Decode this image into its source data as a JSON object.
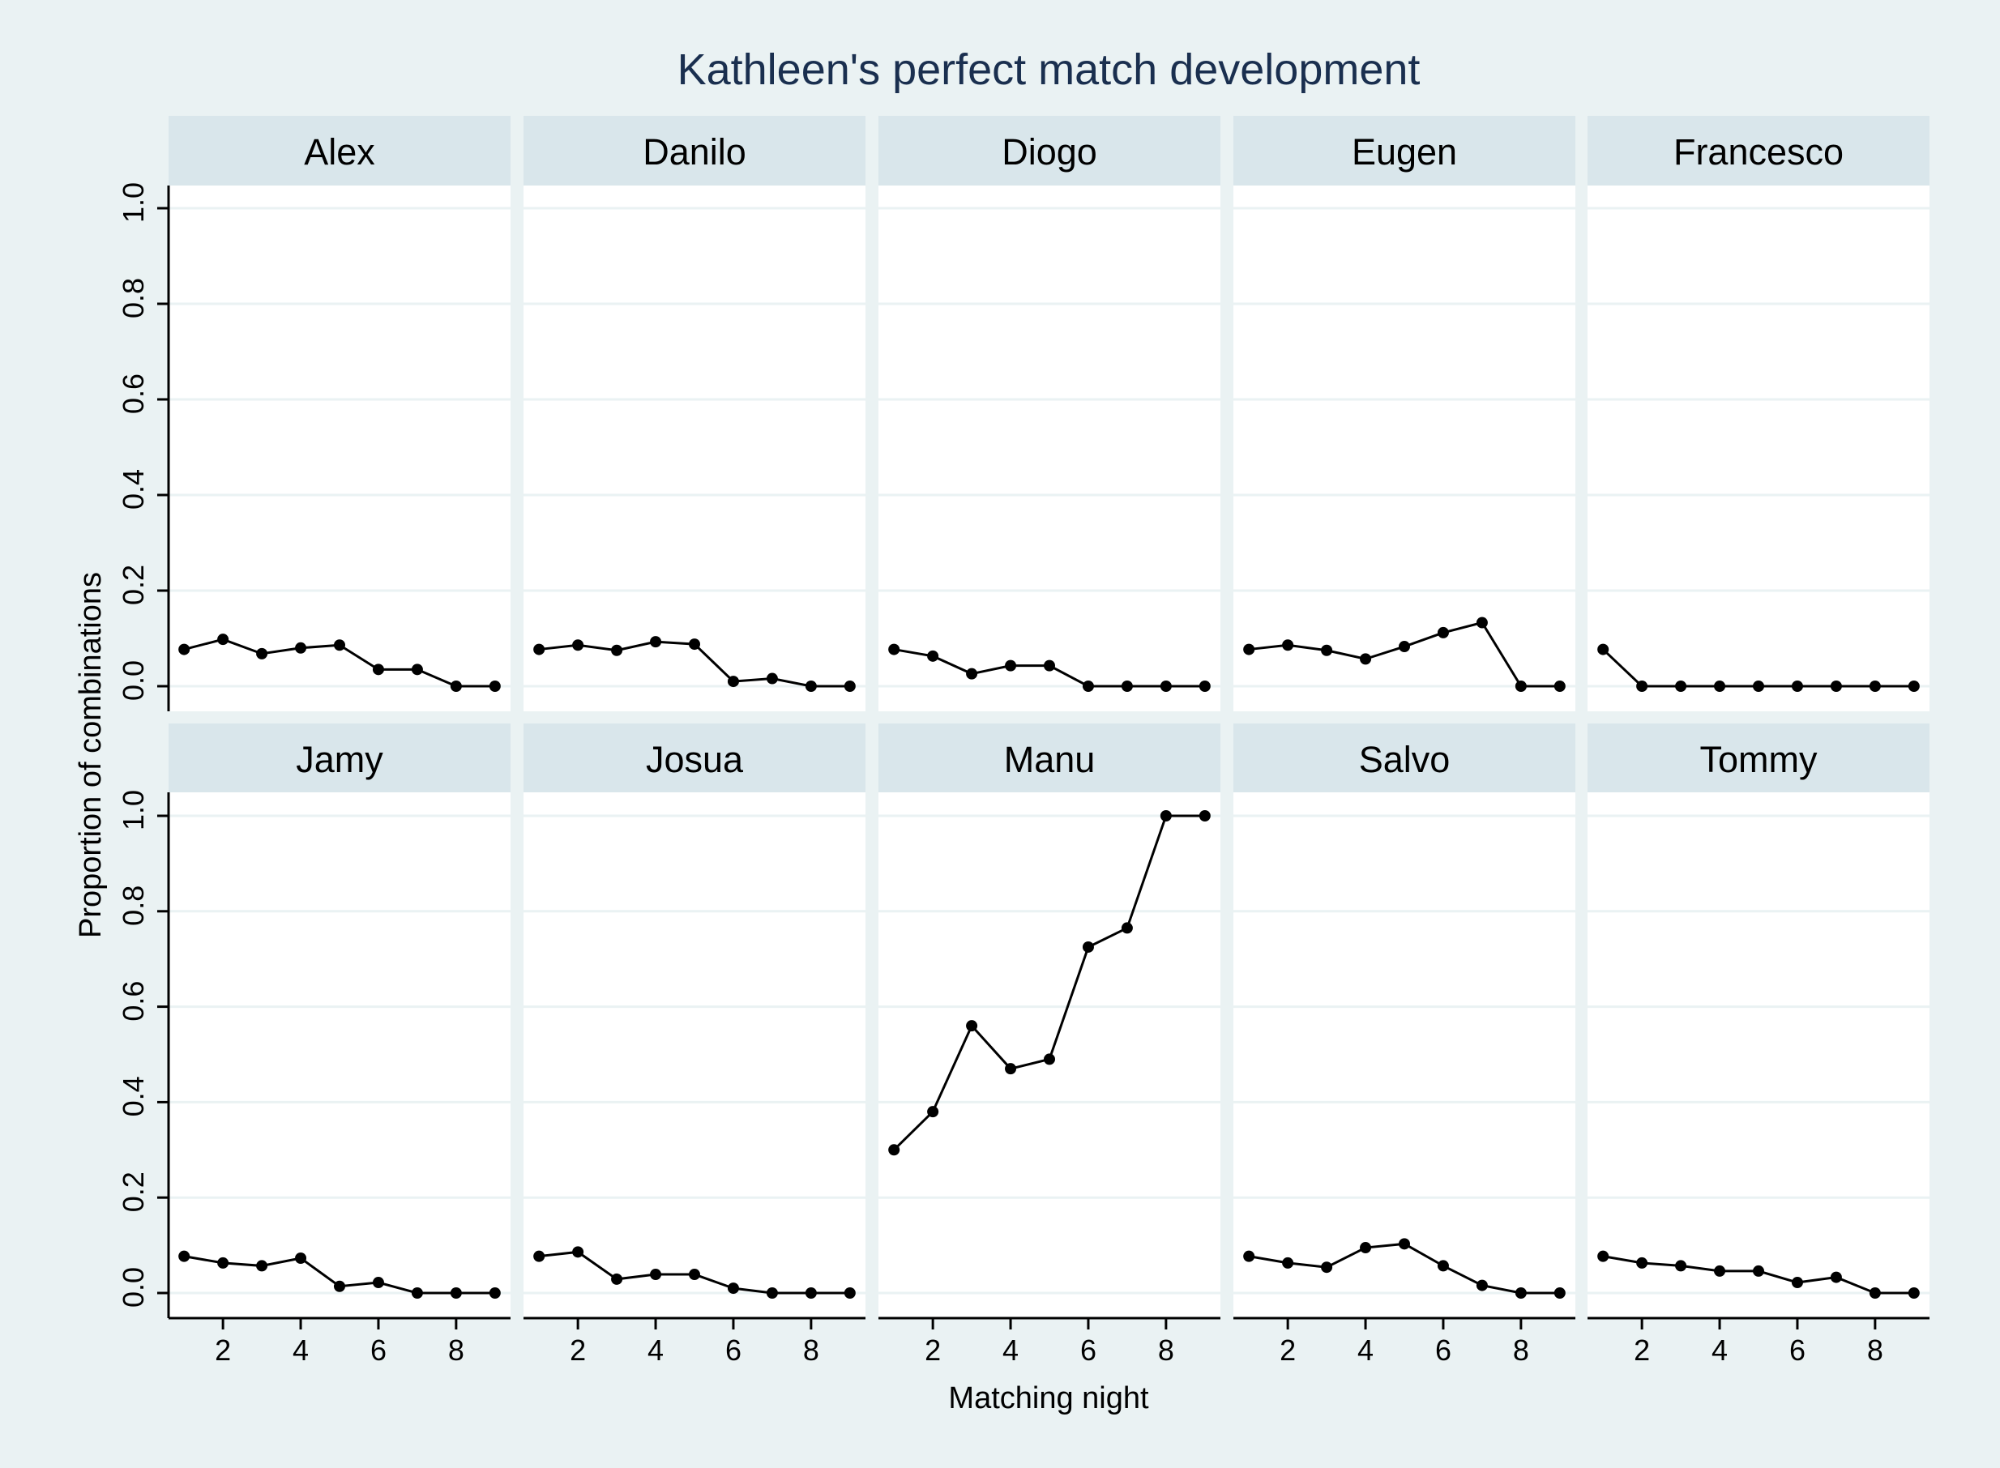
{
  "chart_data": {
    "type": "line",
    "title": "Kathleen's perfect match development",
    "xlabel": "Matching night",
    "ylabel": "Proportion of combinations",
    "x": [
      1,
      2,
      3,
      4,
      5,
      6,
      7,
      8,
      9
    ],
    "xticks": [
      "2",
      "4",
      "6",
      "8"
    ],
    "yticks": [
      "0.0",
      "0.2",
      "0.4",
      "0.6",
      "0.8",
      "1.0"
    ],
    "xlim": [
      0.6,
      9.4
    ],
    "ylim": [
      -0.05,
      1.05
    ],
    "grid": true,
    "legend": "none",
    "colors": {
      "background": "#eaf2f3",
      "panel": "#ffffff",
      "strip": "#d9e6eb",
      "grid": "#eaf2f3",
      "line": "#000000",
      "title": "#1a2f4f"
    },
    "panels": [
      {
        "name": "Alex",
        "values": [
          0.077,
          0.098,
          0.068,
          0.08,
          0.086,
          0.035,
          0.035,
          0.0,
          0.0
        ]
      },
      {
        "name": "Danilo",
        "values": [
          0.077,
          0.086,
          0.075,
          0.093,
          0.088,
          0.01,
          0.016,
          0.0,
          0.0
        ]
      },
      {
        "name": "Diogo",
        "values": [
          0.077,
          0.063,
          0.026,
          0.043,
          0.043,
          0.0,
          0.0,
          0.0,
          0.0
        ]
      },
      {
        "name": "Eugen",
        "values": [
          0.077,
          0.086,
          0.075,
          0.057,
          0.083,
          0.112,
          0.133,
          0.0,
          0.0
        ]
      },
      {
        "name": "Francesco",
        "values": [
          0.077,
          0.0,
          0.0,
          0.0,
          0.0,
          0.0,
          0.0,
          0.0,
          0.0
        ]
      },
      {
        "name": "Jamy",
        "values": [
          0.077,
          0.063,
          0.057,
          0.073,
          0.014,
          0.022,
          0.0,
          0.0,
          0.0
        ]
      },
      {
        "name": "Josua",
        "values": [
          0.077,
          0.086,
          0.029,
          0.039,
          0.039,
          0.01,
          0.0,
          0.0,
          0.0
        ]
      },
      {
        "name": "Manu",
        "values": [
          0.3,
          0.38,
          0.56,
          0.47,
          0.49,
          0.725,
          0.765,
          1.0,
          1.0
        ]
      },
      {
        "name": "Salvo",
        "values": [
          0.077,
          0.063,
          0.054,
          0.095,
          0.103,
          0.057,
          0.016,
          0.0,
          0.0
        ]
      },
      {
        "name": "Tommy",
        "values": [
          0.077,
          0.063,
          0.057,
          0.046,
          0.046,
          0.022,
          0.033,
          0.0,
          0.0
        ]
      }
    ]
  }
}
